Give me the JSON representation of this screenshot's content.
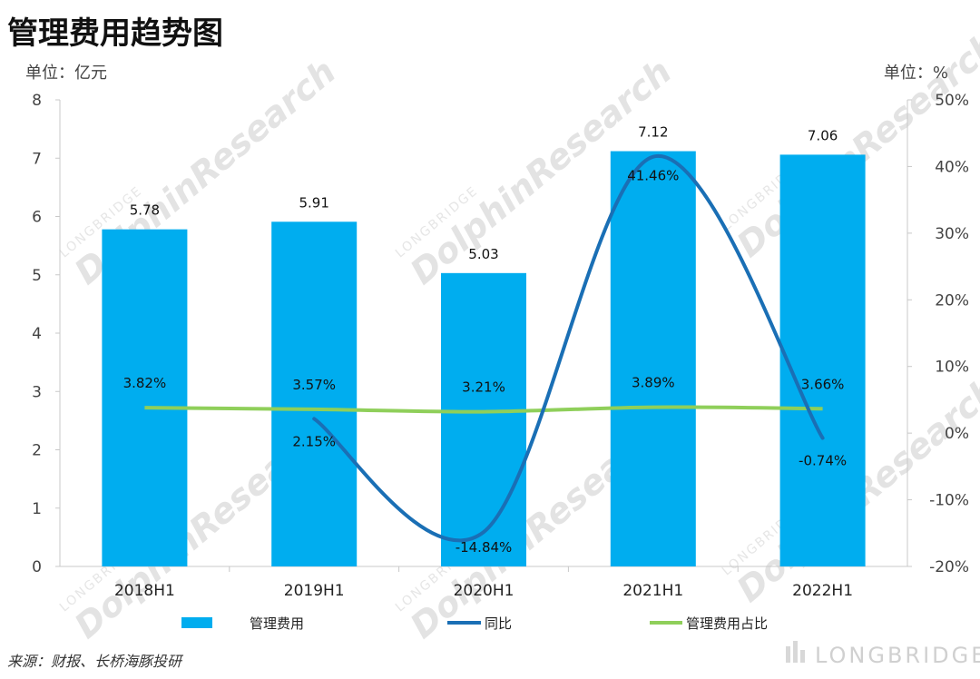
{
  "title": "管理费用趋势图",
  "left_unit": "单位：亿元",
  "right_unit": "单位：%",
  "source": "来源：财报、长桥海豚投研",
  "brand": "LONGBRIDGE",
  "watermark": "DolphinResearch",
  "watermark_small": "LONGBRIDGE",
  "colors": {
    "bar": "#00adef",
    "yoy": "#1a6fb5",
    "ratio": "#8fcf5a"
  },
  "chart_data": {
    "type": "bar",
    "categories": [
      "2018H1",
      "2019H1",
      "2020H1",
      "2021H1",
      "2022H1"
    ],
    "ylim": [
      0,
      8
    ],
    "y_ticks": [
      0,
      1,
      2,
      3,
      4,
      5,
      6,
      7,
      8
    ],
    "y2lim": [
      -20,
      50
    ],
    "y2_ticks": [
      "-20%",
      "-10%",
      "0%",
      "10%",
      "20%",
      "30%",
      "40%",
      "50%"
    ],
    "legend_placement": "bottom",
    "grid": false,
    "series": [
      {
        "name": "管理费用",
        "type": "bar",
        "axis": "left",
        "values": [
          5.78,
          5.91,
          5.03,
          7.12,
          7.06
        ],
        "labels": [
          "5.78",
          "5.91",
          "5.03",
          "7.12",
          "7.06"
        ]
      },
      {
        "name": "同比",
        "type": "line",
        "axis": "right",
        "smooth": true,
        "values": [
          null,
          2.15,
          -14.84,
          41.46,
          -0.74
        ],
        "labels": [
          null,
          "2.15%",
          "-14.84%",
          "41.46%",
          "-0.74%"
        ]
      },
      {
        "name": "管理费用占比",
        "type": "line",
        "axis": "right",
        "values": [
          3.82,
          3.57,
          3.21,
          3.89,
          3.66
        ],
        "labels": [
          "3.82%",
          "3.57%",
          "3.21%",
          "3.89%",
          "3.66%"
        ]
      }
    ]
  }
}
